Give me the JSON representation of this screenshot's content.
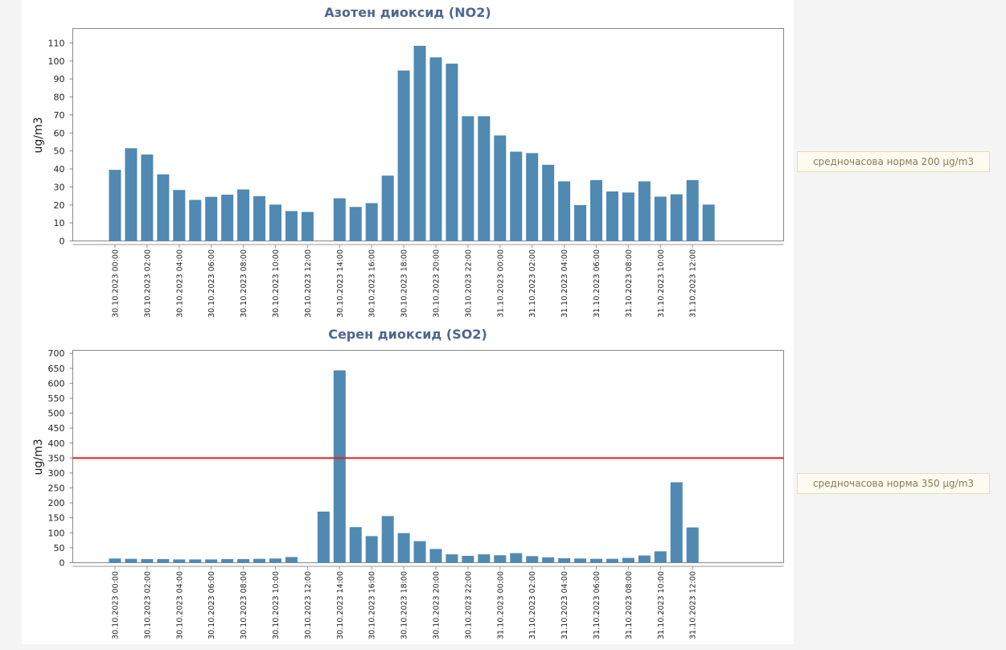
{
  "chart_data": [
    {
      "type": "bar",
      "title": "Азотен диоксид (NO2)",
      "ylabel": "ug/m3",
      "xlabel": "",
      "ylim": [
        0,
        118
      ],
      "yticks": [
        0,
        10,
        20,
        30,
        40,
        50,
        60,
        70,
        80,
        90,
        100,
        110
      ],
      "categories": [
        "30.10.2023 00:00",
        "30.10.2023 01:00",
        "30.10.2023 02:00",
        "30.10.2023 03:00",
        "30.10.2023 04:00",
        "30.10.2023 05:00",
        "30.10.2023 06:00",
        "30.10.2023 07:00",
        "30.10.2023 08:00",
        "30.10.2023 09:00",
        "30.10.2023 10:00",
        "30.10.2023 11:00",
        "30.10.2023 12:00",
        "30.10.2023 13:00",
        "30.10.2023 14:00",
        "30.10.2023 15:00",
        "30.10.2023 16:00",
        "30.10.2023 17:00",
        "30.10.2023 18:00",
        "30.10.2023 19:00",
        "30.10.2023 20:00",
        "30.10.2023 21:00",
        "30.10.2023 22:00",
        "30.10.2023 23:00",
        "31.10.2023 00:00",
        "31.10.2023 01:00",
        "31.10.2023 02:00",
        "31.10.2023 03:00",
        "31.10.2023 04:00",
        "31.10.2023 05:00",
        "31.10.2023 06:00",
        "31.10.2023 07:00",
        "31.10.2023 08:00",
        "31.10.2023 09:00",
        "31.10.2023 10:00",
        "31.10.2023 11:00",
        "31.10.2023 12:00",
        "31.10.2023 13:00",
        "31.10.2023 14:00",
        "31.10.2023 15:00",
        "31.10.2023 16:00",
        "31.10.2023 17:00",
        "31.10.2023 18:00",
        "31.10.2023 19:00"
      ],
      "tick_labels": [
        "30.10.2023 00:00",
        "30.10.2023 02:00",
        "30.10.2023 04:00",
        "30.10.2023 06:00",
        "30.10.2023 08:00",
        "30.10.2023 10:00",
        "30.10.2023 12:00",
        "30.10.2023 14:00",
        "30.10.2023 16:00",
        "30.10.2023 18:00",
        "30.10.2023 20:00",
        "30.10.2023 22:00",
        "31.10.2023 00:00",
        "31.10.2023 02:00",
        "31.10.2023 04:00",
        "31.10.2023 06:00",
        "31.10.2023 08:00",
        "31.10.2023 10:00",
        "31.10.2023 12:00"
      ],
      "values": [
        39.5,
        51.5,
        48,
        37,
        28.3,
        22.8,
        24.5,
        25.7,
        28.6,
        24.9,
        20.2,
        16.6,
        16.1,
        null,
        23.7,
        18.9,
        21,
        36.3,
        94.7,
        108.4,
        102,
        98.5,
        69.3,
        69.3,
        58.6,
        49.6,
        48.8,
        42.3,
        33.1,
        19.9,
        33.8,
        27.5,
        26.9,
        33.1,
        24.6,
        25.9,
        33.8,
        20.2,
        null,
        null,
        null,
        null,
        null,
        null
      ],
      "threshold": null,
      "norm_label": "средночасова норма 200 µg/m3",
      "bar_color": "#5089b1",
      "grid": false
    },
    {
      "type": "bar",
      "title": "Серен диоксид (SO2)",
      "ylabel": "ug/m3",
      "xlabel": "",
      "ylim": [
        0,
        710
      ],
      "yticks": [
        0,
        50,
        100,
        150,
        200,
        250,
        300,
        350,
        400,
        450,
        500,
        550,
        600,
        650,
        700
      ],
      "categories": [
        "30.10.2023 00:00",
        "30.10.2023 01:00",
        "30.10.2023 02:00",
        "30.10.2023 03:00",
        "30.10.2023 04:00",
        "30.10.2023 05:00",
        "30.10.2023 06:00",
        "30.10.2023 07:00",
        "30.10.2023 08:00",
        "30.10.2023 09:00",
        "30.10.2023 10:00",
        "30.10.2023 11:00",
        "30.10.2023 12:00",
        "30.10.2023 13:00",
        "30.10.2023 14:00",
        "30.10.2023 15:00",
        "30.10.2023 16:00",
        "30.10.2023 17:00",
        "30.10.2023 18:00",
        "30.10.2023 19:00",
        "30.10.2023 20:00",
        "30.10.2023 21:00",
        "30.10.2023 22:00",
        "30.10.2023 23:00",
        "31.10.2023 00:00",
        "31.10.2023 01:00",
        "31.10.2023 02:00",
        "31.10.2023 03:00",
        "31.10.2023 04:00",
        "31.10.2023 05:00",
        "31.10.2023 06:00",
        "31.10.2023 07:00",
        "31.10.2023 08:00",
        "31.10.2023 09:00",
        "31.10.2023 10:00",
        "31.10.2023 11:00",
        "31.10.2023 12:00",
        "31.10.2023 13:00",
        "31.10.2023 14:00",
        "31.10.2023 15:00",
        "31.10.2023 16:00",
        "31.10.2023 17:00",
        "31.10.2023 18:00",
        "31.10.2023 19:00"
      ],
      "tick_labels": [
        "30.10.2023 00:00",
        "30.10.2023 02:00",
        "30.10.2023 04:00",
        "30.10.2023 06:00",
        "30.10.2023 08:00",
        "30.10.2023 10:00",
        "30.10.2023 12:00",
        "30.10.2023 14:00",
        "30.10.2023 16:00",
        "30.10.2023 18:00",
        "30.10.2023 20:00",
        "30.10.2023 22:00",
        "31.10.2023 00:00",
        "31.10.2023 02:00",
        "31.10.2023 04:00",
        "31.10.2023 06:00",
        "31.10.2023 08:00",
        "31.10.2023 10:00",
        "31.10.2023 12:00"
      ],
      "values": [
        14,
        13,
        12,
        12,
        11,
        11,
        11,
        12,
        12,
        13,
        14,
        19,
        null,
        171,
        643,
        119,
        89,
        156,
        99,
        72,
        46,
        28,
        23,
        28,
        25,
        32,
        22,
        18,
        15,
        14,
        13,
        13,
        16,
        24,
        38,
        269,
        118,
        null,
        null,
        null,
        null,
        null,
        null,
        null
      ],
      "threshold": 350,
      "threshold_color": "#e0201a",
      "norm_label": "средночасова норма 350 µg/m3",
      "bar_color": "#5089b1",
      "grid": false
    }
  ]
}
